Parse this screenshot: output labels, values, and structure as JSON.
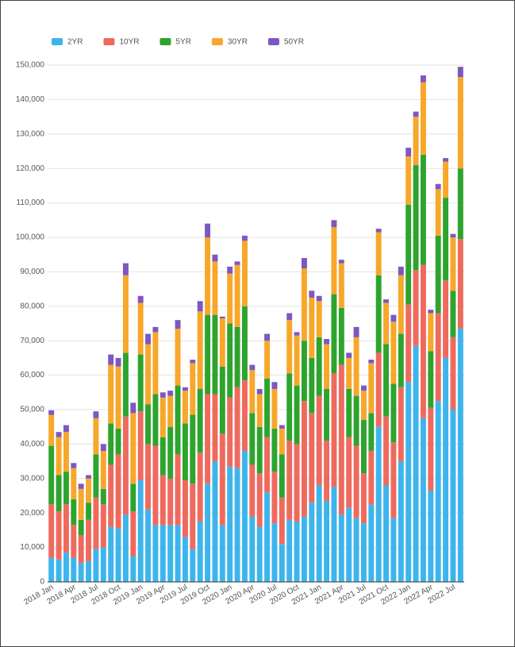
{
  "chart_data": {
    "type": "stacked_bar",
    "categories": [
      "2018 Jan",
      null,
      null,
      "2018 Apr",
      null,
      null,
      "2018 Jul",
      null,
      null,
      "2018 Oct",
      null,
      null,
      "2019 Jan",
      null,
      null,
      "2019 Apr",
      null,
      null,
      "2019 Jul",
      null,
      null,
      "2019 Oct",
      null,
      null,
      "2020 Jan",
      null,
      null,
      "2020 Apr",
      null,
      null,
      "2020 Jul",
      null,
      null,
      "2020 Oct",
      null,
      null,
      "2021 Jan",
      null,
      null,
      "2021 Apr",
      null,
      null,
      "2021 Jul",
      null,
      null,
      "2021 Oct",
      null,
      null,
      "2022 Jan",
      null,
      null,
      "2022 Apr",
      null,
      null,
      "2022 Jul",
      null
    ],
    "series": [
      {
        "name": "2YR",
        "color": "#3db5ec",
        "values": [
          7000,
          6500,
          8500,
          7000,
          5500,
          6000,
          9500,
          10000,
          16000,
          15500,
          19500,
          7500,
          29500,
          21000,
          16500,
          16500,
          16500,
          16500,
          13000,
          9500,
          17500,
          28500,
          35000,
          16500,
          33500,
          33000,
          38000,
          19000,
          16000,
          26000,
          17000,
          11000,
          18000,
          17500,
          19000,
          23000,
          28000,
          23500,
          27500,
          19500,
          21500,
          18500,
          17000,
          22500,
          45000,
          28000,
          18500,
          35000,
          58000,
          68500,
          47500,
          26500,
          52500,
          65000,
          50000,
          73500
        ]
      },
      {
        "name": "10YR",
        "color": "#ef6a5e",
        "values": [
          15500,
          14000,
          14000,
          9500,
          8000,
          12000,
          15000,
          12500,
          18000,
          21500,
          28500,
          13000,
          20000,
          19000,
          23000,
          14500,
          13500,
          20500,
          16500,
          19000,
          20000,
          26000,
          19500,
          26500,
          20000,
          23500,
          20500,
          15000,
          15500,
          16000,
          15000,
          13500,
          23000,
          22500,
          33500,
          26000,
          26000,
          17500,
          33000,
          43500,
          20500,
          21000,
          14500,
          15500,
          21500,
          20000,
          22000,
          21500,
          22500,
          22000,
          44500,
          24000,
          25500,
          22500,
          21000,
          26000
        ]
      },
      {
        "name": "5YR",
        "color": "#2ea42e",
        "values": [
          17000,
          10500,
          9500,
          7500,
          4500,
          5000,
          12500,
          4500,
          12000,
          7500,
          18500,
          8000,
          16500,
          11500,
          15000,
          11000,
          15000,
          20000,
          16500,
          20000,
          18500,
          23000,
          23000,
          19500,
          21500,
          17500,
          21500,
          15000,
          13500,
          17000,
          12500,
          12500,
          19500,
          17000,
          17500,
          16000,
          17000,
          15000,
          23000,
          16500,
          14000,
          14500,
          15500,
          11000,
          22500,
          21000,
          17000,
          15500,
          29000,
          30500,
          32000,
          16500,
          22500,
          24000,
          13500,
          20500
        ]
      },
      {
        "name": "30YR",
        "color": "#f7a72a",
        "values": [
          9000,
          11000,
          11500,
          9000,
          9000,
          7000,
          10500,
          11000,
          17000,
          18000,
          22500,
          20500,
          15000,
          17500,
          18000,
          11500,
          9000,
          16500,
          9500,
          15000,
          22500,
          22500,
          15500,
          14000,
          14500,
          18000,
          19000,
          12500,
          9500,
          11000,
          11500,
          7500,
          15500,
          14500,
          21000,
          17500,
          10500,
          13000,
          19500,
          13000,
          9000,
          17000,
          8500,
          14500,
          12500,
          12000,
          18000,
          17000,
          14000,
          14000,
          21000,
          11000,
          13500,
          10500,
          15500,
          26500
        ]
      },
      {
        "name": "50YR",
        "color": "#7e57c2",
        "values": [
          1300,
          1500,
          2000,
          1500,
          1500,
          1000,
          2000,
          2000,
          3000,
          2500,
          3500,
          3000,
          2000,
          3000,
          1500,
          1500,
          1500,
          2500,
          1000,
          1000,
          3000,
          4000,
          2000,
          500,
          2000,
          1000,
          1500,
          1500,
          1500,
          2000,
          2000,
          1000,
          2000,
          1000,
          3000,
          2000,
          1500,
          1500,
          2000,
          1000,
          1500,
          3000,
          1500,
          1000,
          1000,
          1000,
          2000,
          2500,
          2500,
          1500,
          2000,
          1000,
          1500,
          1000,
          1000,
          3000
        ]
      }
    ],
    "ylim": [
      0,
      150000
    ],
    "yticks": [
      0,
      {
        "value": 10000,
        "label": "10,000"
      },
      {
        "value": 20000,
        "label": "20,000"
      },
      {
        "value": 30000,
        "label": "30,000"
      },
      {
        "value": 40000,
        "label": "40,000"
      },
      {
        "value": 50000,
        "label": "50,000"
      },
      {
        "value": 60000,
        "label": "60,000"
      },
      {
        "value": 70000,
        "label": "70,000"
      },
      {
        "value": 80000,
        "label": "80,000"
      },
      {
        "value": 90000,
        "label": "90,000"
      },
      {
        "value": 100000,
        "label": "100,000"
      },
      {
        "value": 110000,
        "label": "110,000"
      },
      {
        "value": 120000,
        "label": "120,000"
      },
      {
        "value": 130000,
        "label": "130,000"
      },
      {
        "value": 140000,
        "label": "140,000"
      },
      {
        "value": 150000,
        "label": "150,000"
      }
    ],
    "grid": true,
    "legend": "top-left"
  }
}
